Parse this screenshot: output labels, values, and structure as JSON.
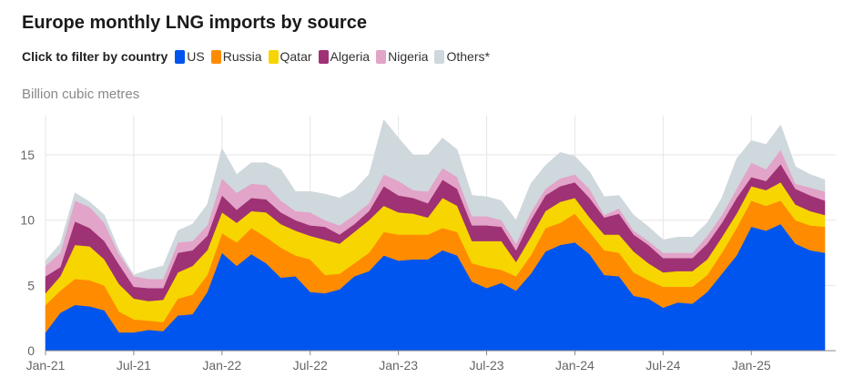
{
  "chart_data": {
    "type": "area",
    "stacked": true,
    "title": "Europe monthly LNG imports by source",
    "legend_prompt": "Click to filter by country",
    "ylabel": "Billion cubic metres",
    "xlabel": "",
    "ylim": [
      0,
      18
    ],
    "yticks": [
      "0",
      "5",
      "10",
      "15"
    ],
    "ytick_values": [
      0,
      5,
      10,
      15
    ],
    "xticks": [
      "Jan-21",
      "Jul-21",
      "Jan-22",
      "Jul-22",
      "Jan-23",
      "Jul-23",
      "Jan-24",
      "Jul-24",
      "Jan-25"
    ],
    "xtick_indices": [
      0,
      6,
      12,
      18,
      24,
      30,
      36,
      42,
      48
    ],
    "grid": true,
    "legend_position": "top",
    "categories": [
      "Jan-21",
      "Feb-21",
      "Mar-21",
      "Apr-21",
      "May-21",
      "Jun-21",
      "Jul-21",
      "Aug-21",
      "Sep-21",
      "Oct-21",
      "Nov-21",
      "Dec-21",
      "Jan-22",
      "Feb-22",
      "Mar-22",
      "Apr-22",
      "May-22",
      "Jun-22",
      "Jul-22",
      "Aug-22",
      "Sep-22",
      "Oct-22",
      "Nov-22",
      "Dec-22",
      "Jan-23",
      "Feb-23",
      "Mar-23",
      "Apr-23",
      "May-23",
      "Jun-23",
      "Jul-23",
      "Aug-23",
      "Sep-23",
      "Oct-23",
      "Nov-23",
      "Dec-23",
      "Jan-24",
      "Feb-24",
      "Mar-24",
      "Apr-24",
      "May-24",
      "Jun-24",
      "Jul-24",
      "Aug-24",
      "Sep-24",
      "Oct-24",
      "Nov-24",
      "Dec-24",
      "Jan-25",
      "Feb-25",
      "Mar-25",
      "Apr-25",
      "May-25",
      "Jun-25"
    ],
    "series": [
      {
        "name": "US",
        "color": "#0055ee",
        "values": [
          1.4,
          2.9,
          3.5,
          3.4,
          3.1,
          1.4,
          1.4,
          1.6,
          1.5,
          2.7,
          2.8,
          4.5,
          7.5,
          6.5,
          7.4,
          6.7,
          5.6,
          5.7,
          4.5,
          4.4,
          4.7,
          5.7,
          6.1,
          7.3,
          6.9,
          7.0,
          7.0,
          7.7,
          7.3,
          5.3,
          4.8,
          5.2,
          4.6,
          5.9,
          7.6,
          8.1,
          8.3,
          7.4,
          5.8,
          5.7,
          4.2,
          4.0,
          3.3,
          3.7,
          3.6,
          4.5,
          5.9,
          7.3,
          9.5,
          9.2,
          9.7,
          8.2,
          7.7,
          7.5
        ]
      },
      {
        "name": "Russia",
        "color": "#ff8c00",
        "values": [
          2.1,
          1.7,
          2.0,
          2.0,
          1.9,
          1.6,
          1.0,
          0.7,
          0.7,
          1.3,
          1.5,
          1.3,
          1.5,
          1.8,
          2.0,
          2.0,
          2.3,
          1.6,
          2.5,
          1.4,
          1.2,
          1.0,
          1.4,
          1.8,
          2.0,
          1.9,
          1.9,
          1.7,
          1.8,
          1.4,
          1.6,
          1.0,
          1.1,
          1.4,
          1.8,
          1.7,
          2.2,
          1.7,
          1.9,
          1.8,
          1.8,
          1.4,
          1.6,
          1.2,
          1.3,
          1.3,
          1.6,
          2.1,
          2.0,
          1.9,
          1.8,
          1.8,
          1.9,
          2.0
        ]
      },
      {
        "name": "Qatar",
        "color": "#f7d500",
        "values": [
          0.9,
          1.1,
          2.6,
          2.6,
          2.0,
          2.1,
          1.6,
          1.5,
          1.7,
          2.0,
          2.2,
          1.9,
          1.6,
          1.5,
          1.3,
          1.9,
          1.8,
          1.9,
          1.8,
          2.7,
          2.3,
          2.4,
          2.5,
          2.0,
          1.7,
          1.6,
          1.3,
          2.3,
          2.0,
          1.7,
          2.0,
          2.2,
          1.1,
          1.4,
          1.3,
          1.6,
          1.2,
          1.1,
          1.2,
          1.4,
          1.6,
          1.3,
          1.1,
          1.2,
          1.2,
          1.2,
          1.2,
          1.1,
          1.1,
          1.2,
          1.4,
          1.2,
          1.1,
          0.9
        ]
      },
      {
        "name": "Algeria",
        "color": "#9e3274",
        "values": [
          1.3,
          0.7,
          1.8,
          1.4,
          1.4,
          1.5,
          0.9,
          1.0,
          0.9,
          1.5,
          1.2,
          1.1,
          1.3,
          1.0,
          1.0,
          1.0,
          0.9,
          0.8,
          0.8,
          1.0,
          0.7,
          0.6,
          0.7,
          1.5,
          1.3,
          1.2,
          1.1,
          1.4,
          1.3,
          1.2,
          1.2,
          1.1,
          0.9,
          1.3,
          1.2,
          1.2,
          1.2,
          1.5,
          1.3,
          1.6,
          1.3,
          1.4,
          1.1,
          1.0,
          1.0,
          1.2,
          1.1,
          1.2,
          0.7,
          0.7,
          1.4,
          1.2,
          1.2,
          1.1
        ]
      },
      {
        "name": "Nigeria",
        "color": "#e2a4c8",
        "values": [
          0.8,
          1.1,
          1.6,
          1.6,
          1.4,
          0.8,
          0.8,
          0.7,
          0.7,
          0.8,
          0.7,
          0.8,
          1.3,
          1.3,
          1.1,
          1.1,
          0.9,
          0.7,
          1.0,
          0.5,
          0.7,
          0.7,
          0.6,
          0.9,
          1.1,
          0.6,
          0.9,
          0.9,
          0.9,
          0.7,
          0.7,
          0.5,
          0.5,
          0.6,
          0.5,
          0.6,
          0.6,
          0.7,
          0.2,
          0.4,
          0.3,
          0.3,
          0.4,
          0.4,
          0.4,
          0.6,
          0.6,
          0.7,
          1.1,
          0.9,
          1.1,
          0.4,
          0.6,
          0.7
        ]
      },
      {
        "name": "Others*",
        "color": "#cfd8dc",
        "values": [
          0.4,
          0.7,
          0.6,
          0.4,
          0.6,
          0.3,
          0.1,
          0.7,
          1.0,
          0.9,
          1.3,
          1.6,
          2.3,
          1.4,
          1.6,
          1.7,
          2.4,
          1.5,
          1.6,
          2.0,
          2.1,
          1.9,
          2.2,
          4.2,
          3.3,
          2.7,
          2.8,
          2.3,
          2.1,
          1.6,
          1.5,
          1.5,
          1.8,
          2.2,
          1.8,
          2.0,
          1.4,
          1.3,
          1.4,
          1.0,
          1.2,
          1.1,
          1.0,
          1.2,
          1.2,
          1.0,
          1.3,
          2.3,
          1.7,
          1.9,
          1.9,
          1.3,
          1.0,
          0.9
        ]
      }
    ]
  }
}
